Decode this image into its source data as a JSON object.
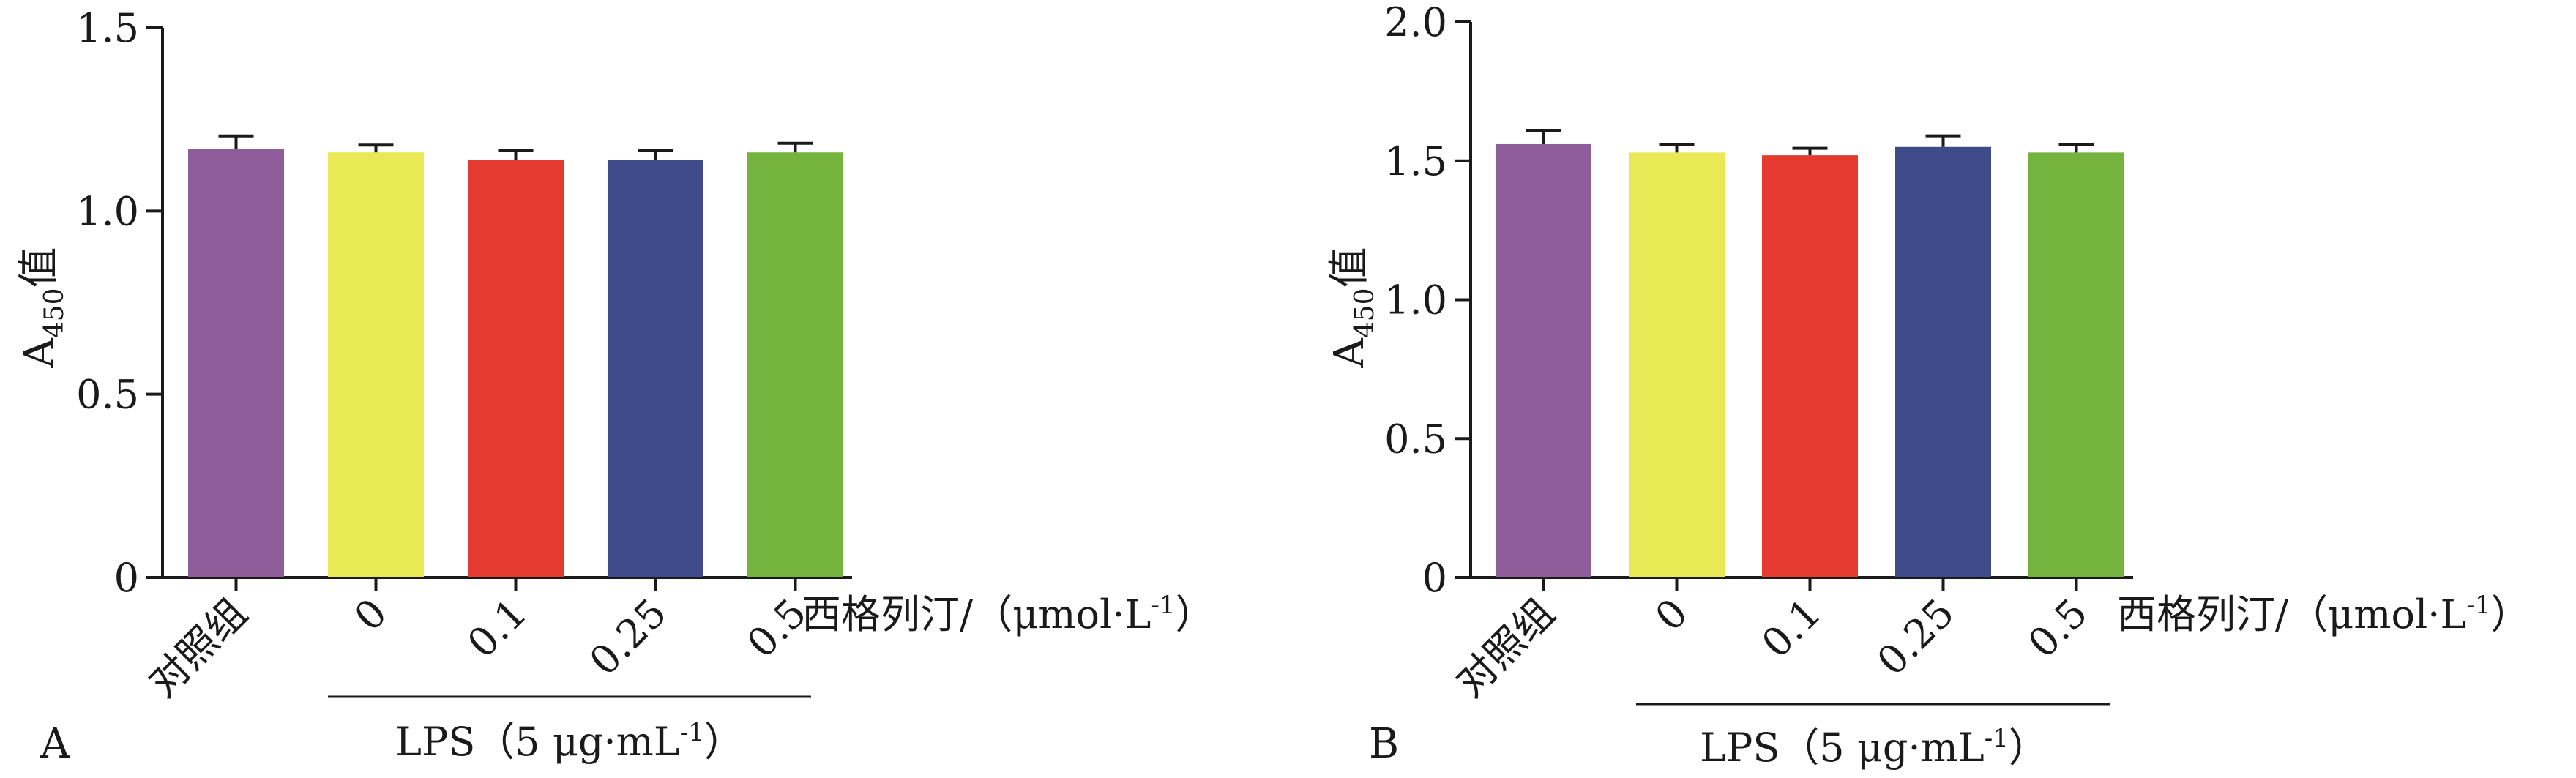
{
  "chart_data": [
    {
      "type": "bar",
      "panel_label": "A",
      "ylabel_main": "A",
      "ylabel_sub": "450",
      "ylabel_suffix": "值",
      "ylim": [
        0,
        1.5
      ],
      "yticks": [
        "0",
        "0.5",
        "1.0",
        "1.5"
      ],
      "categories": [
        "对照组",
        "0",
        "0.1",
        "0.25",
        "0.5"
      ],
      "values": [
        1.17,
        1.16,
        1.14,
        1.14,
        1.16
      ],
      "errors": [
        0.035,
        0.02,
        0.025,
        0.025,
        0.025
      ],
      "colors": [
        "#8f5e9a",
        "#e9e855",
        "#e43a30",
        "#3e4a8a",
        "#74b43e"
      ],
      "xlabel": "西格列汀/（μmol·L",
      "xlabel_sup": "-1",
      "xlabel_close": "）",
      "group_label": "LPS（5 μg·mL",
      "group_label_sup": "-1",
      "group_label_close": "）",
      "grid": false
    },
    {
      "type": "bar",
      "panel_label": "B",
      "ylabel_main": "A",
      "ylabel_sub": "450",
      "ylabel_suffix": "值",
      "ylim": [
        0,
        2.0
      ],
      "yticks": [
        "0",
        "0.5",
        "1.0",
        "1.5",
        "2.0"
      ],
      "categories": [
        "对照组",
        "0",
        "0.1",
        "0.25",
        "0.5"
      ],
      "values": [
        1.56,
        1.53,
        1.52,
        1.55,
        1.53
      ],
      "errors": [
        0.05,
        0.03,
        0.025,
        0.04,
        0.03
      ],
      "colors": [
        "#8f5e9a",
        "#e9e855",
        "#e43a30",
        "#3e4a8a",
        "#74b43e"
      ],
      "xlabel": "西格列汀/（μmol·L",
      "xlabel_sup": "-1",
      "xlabel_close": "）",
      "group_label": "LPS（5 μg·mL",
      "group_label_sup": "-1",
      "group_label_close": "）",
      "grid": false
    }
  ]
}
